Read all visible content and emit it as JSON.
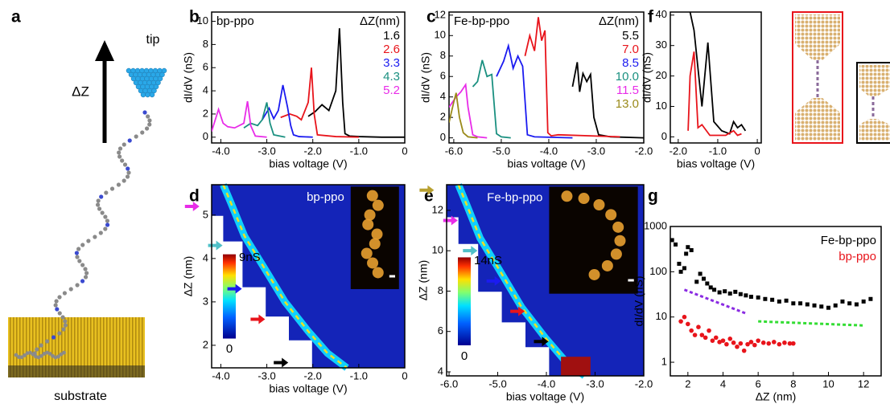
{
  "illustration": {
    "label": "a",
    "tip": "tip",
    "dz": "ΔZ",
    "substrate": "substrate"
  },
  "chart_data": [
    {
      "panel": "b",
      "type": "line",
      "label": "bp-ppo",
      "legend_title": "ΔZ(nm)",
      "xlabel": "bias voltage (V)",
      "ylabel": "dI/dV (nS)",
      "xlim": [
        -4.2,
        0
      ],
      "xticks": [
        {
          "value": -4,
          "label": "-4.0"
        },
        {
          "value": -3,
          "label": "-3.0"
        },
        {
          "value": -2,
          "label": "-2.0"
        },
        {
          "value": -1,
          "label": "-1.0"
        },
        0
      ],
      "ylim": [
        -0.5,
        10.8
      ],
      "yticks": [
        0,
        2,
        4,
        6,
        8,
        10
      ],
      "series": [
        {
          "name": "1.6",
          "color": "#000000",
          "x": [
            -2.1,
            -1.95,
            -1.8,
            -1.65,
            -1.5,
            -1.42,
            -1.35,
            -1.3,
            -1.2,
            -1.0,
            -0.5,
            0
          ],
          "values": [
            1.8,
            2.2,
            2.8,
            2.3,
            4,
            9.4,
            3,
            0.3,
            0.1,
            0.05,
            0,
            0
          ]
        },
        {
          "name": "2.6",
          "color": "#e8141b",
          "x": [
            -2.7,
            -2.5,
            -2.35,
            -2.25,
            -2.1,
            -2.03,
            -1.97,
            -1.9,
            -1.5,
            -1.0
          ],
          "values": [
            1.7,
            2,
            1.8,
            1.5,
            3,
            6,
            2,
            0.2,
            0.05,
            0
          ]
        },
        {
          "name": "3.3",
          "color": "#1b1bf0",
          "x": [
            -3.1,
            -2.95,
            -2.85,
            -2.75,
            -2.65,
            -2.55,
            -2.48,
            -2.42,
            -2.3,
            -2.0
          ],
          "values": [
            1.5,
            2.5,
            1.6,
            2.3,
            4.5,
            2.6,
            1,
            0.2,
            0.05,
            0
          ]
        },
        {
          "name": "4.3",
          "color": "#1a9080",
          "x": [
            -3.5,
            -3.35,
            -3.2,
            -3.1,
            -3.0,
            -2.93,
            -2.85,
            -2.6
          ],
          "values": [
            0.8,
            1.2,
            1.0,
            1.5,
            3.0,
            1.2,
            0.2,
            0
          ]
        },
        {
          "name": "5.2",
          "color": "#e82ce8",
          "x": [
            -4.2,
            -4.05,
            -3.95,
            -3.85,
            -3.7,
            -3.5,
            -3.42,
            -3.35,
            -3.25,
            -3.0
          ],
          "values": [
            0.5,
            2.4,
            1.2,
            0.9,
            0.8,
            1.2,
            3.1,
            1.0,
            0.1,
            0
          ]
        }
      ]
    },
    {
      "panel": "c",
      "type": "line",
      "label": "Fe-bp-ppo",
      "legend_title": "ΔZ(nm)",
      "xlabel": "bias voltage (V)",
      "ylabel": "dI/dV (nS)",
      "xlim": [
        -6.1,
        -2.0
      ],
      "xticks": [
        {
          "value": -6,
          "label": "-6.0"
        },
        {
          "value": -5,
          "label": "-5.0"
        },
        {
          "value": -4,
          "label": "-4.0"
        },
        {
          "value": -3,
          "label": "-3.0"
        },
        {
          "value": -2,
          "label": "-2.0"
        }
      ],
      "ylim": [
        -0.5,
        12.3
      ],
      "yticks": [
        0,
        2,
        4,
        6,
        8,
        10,
        12
      ],
      "series": [
        {
          "name": "5.5",
          "color": "#000000",
          "x": [
            -3.5,
            -3.4,
            -3.35,
            -3.28,
            -3.2,
            -3.12,
            -3.05,
            -2.95,
            -2.7,
            -2.0
          ],
          "values": [
            5,
            7.4,
            4.5,
            6.3,
            5.5,
            6.2,
            2,
            0.3,
            0.1,
            0
          ]
        },
        {
          "name": "7.0",
          "color": "#e8141b",
          "x": [
            -4.5,
            -4.4,
            -4.3,
            -4.22,
            -4.15,
            -4.08,
            -4.02,
            -3.95,
            -3.8,
            -2.5
          ],
          "values": [
            8,
            10,
            8.5,
            11.8,
            9.5,
            10.5,
            0.5,
            0.2,
            0.3,
            0.1
          ]
        },
        {
          "name": "8.5",
          "color": "#1b1bf0",
          "x": [
            -5.1,
            -4.95,
            -4.85,
            -4.75,
            -4.65,
            -4.55,
            -4.45,
            -4.3,
            -3.5
          ],
          "values": [
            6,
            7.5,
            9,
            6.8,
            8,
            7,
            0.3,
            0.1,
            0
          ]
        },
        {
          "name": "10.0",
          "color": "#1a9080",
          "x": [
            -5.6,
            -5.5,
            -5.4,
            -5.3,
            -5.2,
            -5.1,
            -5.0,
            -4.8
          ],
          "values": [
            5,
            5.5,
            7.6,
            6,
            6.2,
            0.4,
            0.1,
            0
          ]
        },
        {
          "name": "11.5",
          "color": "#e82ce8",
          "x": [
            -6.1,
            -5.95,
            -5.85,
            -5.75,
            -5.7,
            -5.6,
            -5.5,
            -5.3
          ],
          "values": [
            3,
            4,
            4.5,
            5.2,
            3,
            0.3,
            0.1,
            0
          ]
        },
        {
          "name": "13.0",
          "color": "#9a8a1a",
          "x": [
            -6.1,
            -6.0,
            -5.95,
            -5.88,
            -5.8,
            -5.7,
            -5.5
          ],
          "values": [
            1.5,
            3.5,
            4.4,
            2,
            0.5,
            0.1,
            0
          ]
        }
      ]
    },
    {
      "panel": "f",
      "type": "line",
      "xlabel": "bias voltage (V)",
      "ylabel": "dI/dV (nS)",
      "xlim": [
        -2.2,
        0.1
      ],
      "xticks": [
        {
          "value": -2,
          "label": "-2.0"
        },
        {
          "value": -1,
          "label": "-1.0"
        },
        0
      ],
      "ylim": [
        -2,
        41
      ],
      "yticks": [
        0,
        10,
        20,
        30,
        40
      ],
      "series": [
        {
          "color": "#000000",
          "x": [
            -1.7,
            -1.6,
            -1.4,
            -1.25,
            -1.1,
            -0.9,
            -0.7,
            -0.6,
            -0.5,
            -0.4,
            -0.3
          ],
          "values": [
            41,
            35,
            10,
            31,
            5,
            2,
            1,
            5,
            3,
            4,
            2
          ]
        },
        {
          "color": "#e8141b",
          "x": [
            -1.75,
            -1.7,
            -1.6,
            -1.5,
            -1.4,
            -1.2,
            -0.8,
            -0.6,
            -0.5,
            -0.4
          ],
          "values": [
            2,
            20,
            28,
            3,
            4,
            0.5,
            0.5,
            2,
            0.5,
            1
          ]
        }
      ]
    },
    {
      "panel": "d",
      "type": "heatmap",
      "label": "bp-ppo",
      "xlabel": "bias voltage (V)",
      "ylabel": "ΔZ (nm)",
      "xlim": [
        -4.2,
        0
      ],
      "xticks": [
        {
          "value": -4,
          "label": "-4.0"
        },
        {
          "value": -3,
          "label": "-3.0"
        },
        {
          "value": -2,
          "label": "-2.0"
        },
        {
          "value": -1,
          "label": "-1.0"
        },
        0
      ],
      "ylim": [
        1.48,
        5.7
      ],
      "yticks": [
        2,
        3,
        4,
        5
      ],
      "colorbar_labels": [
        "9nS",
        "0"
      ],
      "arrows": [
        {
          "value": 5.2,
          "color": "#e82ce8"
        },
        {
          "value": 4.3,
          "color": "#4fc0c8"
        },
        {
          "value": 3.3,
          "color": "#1b1bf0"
        },
        {
          "value": 2.6,
          "color": "#e8141b"
        },
        {
          "value": 1.6,
          "color": "#000000"
        }
      ]
    },
    {
      "panel": "e",
      "type": "heatmap",
      "label": "Fe-bp-ppo",
      "xlabel": "bias voltage (V)",
      "ylabel": "ΔZ (nm)",
      "xlim": [
        -6.05,
        -2.0
      ],
      "xticks": [
        {
          "value": -6,
          "label": "-6.0"
        },
        {
          "value": -5,
          "label": "-5.0"
        },
        {
          "value": -4,
          "label": "-4.0"
        },
        {
          "value": -3,
          "label": "-3.0"
        },
        {
          "value": -2,
          "label": "-2.0"
        }
      ],
      "ylim": [
        3.8,
        13.27
      ],
      "yticks": [
        4,
        6,
        8,
        10,
        12
      ],
      "colorbar_labels": [
        "14nS",
        "0"
      ],
      "arrows": [
        {
          "value": 13.0,
          "color": "#b8a030"
        },
        {
          "value": 11.5,
          "color": "#e82ce8"
        },
        {
          "value": 10.0,
          "color": "#4fc0c8"
        },
        {
          "value": 8.5,
          "color": "#1b1bf0"
        },
        {
          "value": 7.0,
          "color": "#e8141b"
        },
        {
          "value": 5.5,
          "color": "#000000"
        }
      ]
    },
    {
      "panel": "g",
      "type": "scatter",
      "log_y": true,
      "xlabel": "ΔZ (nm)",
      "ylabel": "dI/dV (nS)",
      "xlim": [
        1,
        13
      ],
      "xticks": [
        2,
        4,
        6,
        8,
        10,
        12
      ],
      "ylim": [
        0.5,
        1000
      ],
      "yticks": [
        1,
        10,
        100,
        1000
      ],
      "series": [
        {
          "name": "Fe-bp-ppo",
          "color": "#000000",
          "x": [
            1.1,
            1.3,
            1.5,
            1.6,
            1.8,
            1.9,
            2.0,
            2.2,
            2.5,
            2.7,
            2.9,
            3.1,
            3.3,
            3.5,
            3.8,
            4.1,
            4.4,
            4.7,
            5.0,
            5.3,
            5.6,
            6.0,
            6.4,
            6.8,
            7.2,
            7.6,
            8.0,
            8.4,
            8.8,
            9.2,
            9.6,
            10.0,
            10.4,
            10.8,
            11.2,
            11.6,
            12.0,
            12.4
          ],
          "values": [
            500,
            400,
            150,
            100,
            120,
            250,
            350,
            300,
            60,
            90,
            70,
            55,
            45,
            40,
            35,
            37,
            33,
            36,
            32,
            30,
            28,
            27,
            25,
            24,
            22,
            23,
            20,
            20,
            19,
            18,
            17,
            16,
            18,
            22,
            20,
            19,
            22,
            25
          ]
        },
        {
          "name": "bp-ppo",
          "color": "#e8141b",
          "x": [
            1.6,
            1.8,
            2.0,
            2.2,
            2.4,
            2.6,
            2.8,
            3.0,
            3.2,
            3.4,
            3.6,
            3.8,
            4.0,
            4.2,
            4.4,
            4.6,
            4.8,
            5.0,
            5.2,
            5.4,
            5.6,
            5.8,
            6.0,
            6.3,
            6.6,
            6.9,
            7.2,
            7.5,
            7.8,
            8.0
          ],
          "values": [
            8,
            10,
            7,
            5,
            4,
            6,
            4,
            3.5,
            5,
            3,
            3.5,
            2.8,
            3,
            2.5,
            3.3,
            2.7,
            2.2,
            2.6,
            1.8,
            2.5,
            2.8,
            2.4,
            3,
            2.7,
            2.6,
            2.8,
            2.5,
            2.7,
            2.6,
            2.6
          ]
        }
      ],
      "guides": [
        {
          "color": "#8a2be2",
          "x": [
            1.8,
            5.3
          ],
          "values": [
            40,
            12
          ]
        },
        {
          "color": "#33dd33",
          "x": [
            6,
            12
          ],
          "values": [
            8,
            6.5
          ]
        }
      ]
    }
  ]
}
